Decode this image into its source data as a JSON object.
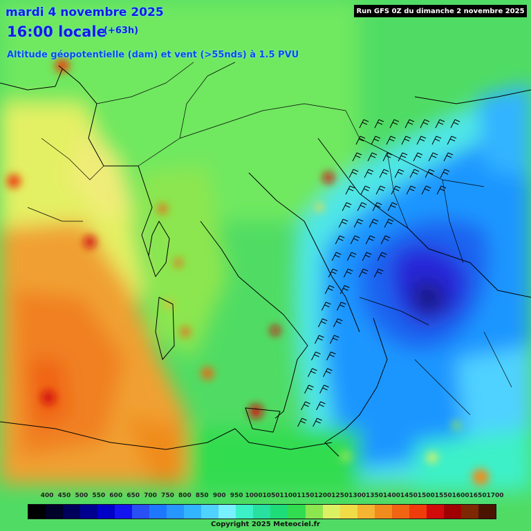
{
  "header": {
    "date": "mardi 4 novembre 2025",
    "time": "16:00 locale",
    "offset": "(+63h)",
    "subtitle": "Altitude géopotentielle (dam) et vent (>55nds) à 1.5 PVU",
    "run_info": "Run GFS 0Z du dimanche 2 novembre 2025"
  },
  "legend": {
    "values": [
      "400",
      "450",
      "500",
      "550",
      "600",
      "650",
      "700",
      "750",
      "800",
      "850",
      "900",
      "950",
      "1000",
      "1050",
      "1100",
      "1150",
      "1200",
      "1250",
      "1300",
      "1350",
      "1400",
      "1450",
      "1500",
      "1550",
      "1600",
      "1650",
      "1700"
    ],
    "colors": [
      "#000000",
      "#000028",
      "#00005a",
      "#000090",
      "#0000c8",
      "#1414f0",
      "#2850f5",
      "#1e78ff",
      "#2896ff",
      "#32b4ff",
      "#50d2ff",
      "#78f0ff",
      "#3cf0c8",
      "#28e0a0",
      "#1edc78",
      "#32dc50",
      "#8ce650",
      "#dcf064",
      "#f0dc46",
      "#f5b432",
      "#f08c1e",
      "#f06414",
      "#f03c0a",
      "#d20a0a",
      "#a00000",
      "#7d2800",
      "#4b1400"
    ]
  },
  "map": {
    "low_center_color": "#1a1a80",
    "high_color": "#f07820"
  },
  "footer": {
    "copyright": "Copyright 2025 Meteociel.fr"
  }
}
